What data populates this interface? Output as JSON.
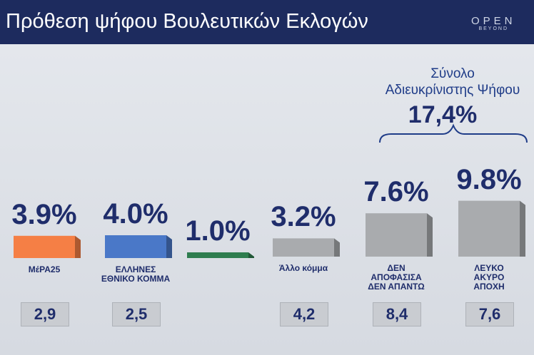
{
  "chart_data": {
    "type": "bar",
    "title": "Πρόθεση ψήφου Βουλευτικών Εκλογών",
    "logo": {
      "main": "OPEN",
      "sub": "BEYOND"
    },
    "categories": [
      "ΜέΡΑ25",
      "ΕΛΛΗΝΕΣ\nΕΘΝΙΚΟ ΚΟΜΜΑ",
      null,
      "Άλλο κόμμα",
      "ΔΕΝ\nΑΠΟΦΑΣΙΣΑ\nΔΕΝ ΑΠΑΝΤΩ",
      "ΛΕΥΚΟ\nΑΚΥΡΟ\nΑΠΟΧΗ"
    ],
    "colors": [
      "#f57f45",
      "#4a78c8",
      "#2f7d4f",
      "#a9abae",
      "#a9abae",
      "#a9abae"
    ],
    "values": [
      3.9,
      4.0,
      1.0,
      3.2,
      7.6,
      9.8
    ],
    "value_labels": [
      "3.9%",
      "4.0%",
      "1.0%",
      "3.2%",
      "7.6%",
      "9.8%"
    ],
    "previous": {
      "values": [
        2.9,
        2.5,
        null,
        4.2,
        8.4,
        7.6
      ],
      "value_labels": [
        "2,9",
        "2,5",
        null,
        "4,2",
        "8,4",
        "7,6"
      ]
    },
    "annotation": {
      "text": "Σύνολο\nΑδιευκρίνιστης Ψήφου",
      "value": 17.4,
      "value_label": "17,4%"
    }
  }
}
